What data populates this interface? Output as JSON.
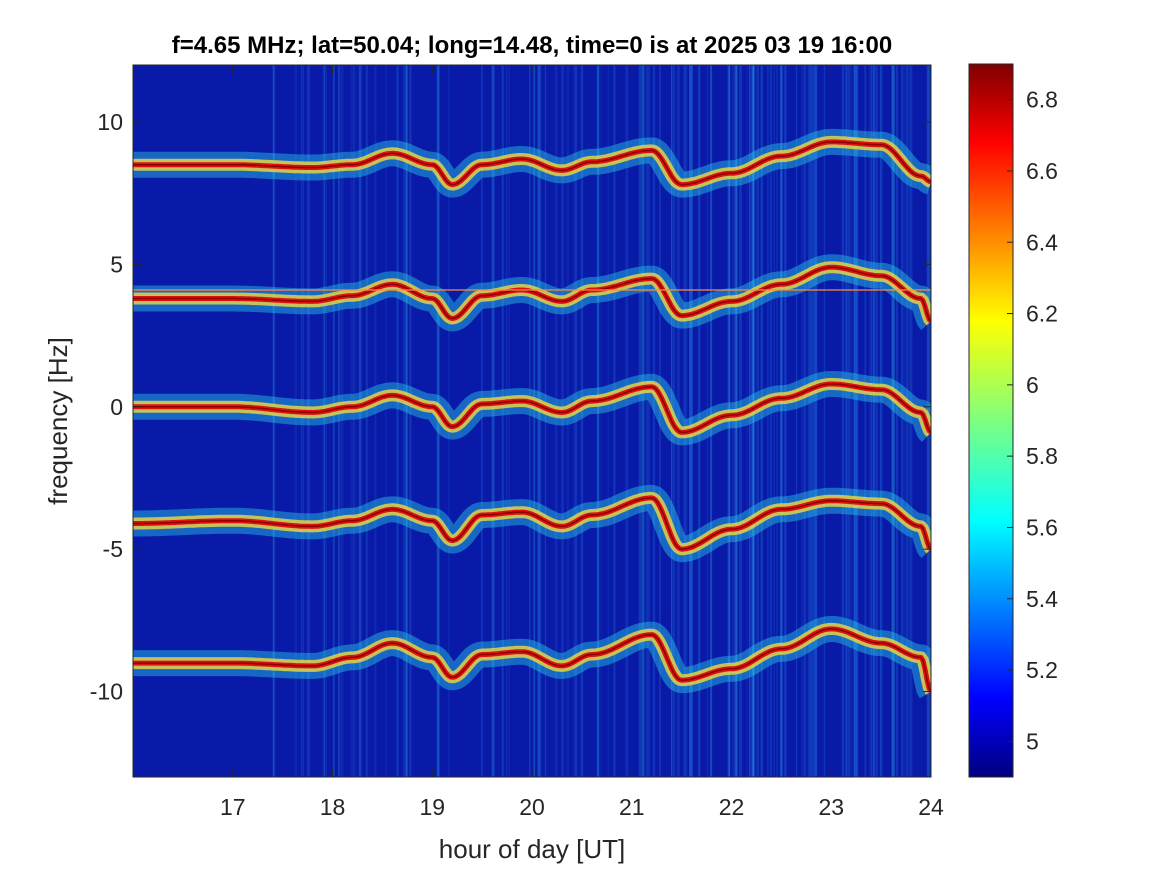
{
  "chart_data": {
    "type": "heatmap",
    "title": "f=4.65 MHz;  lat=50.04; long=14.48, time=0 is at 2025 03 19 16:00",
    "xlabel": "hour of day [UT]",
    "ylabel": "frequency [Hz]",
    "xlim": [
      16,
      24
    ],
    "ylim": [
      -13,
      12
    ],
    "xticks": [
      17,
      18,
      19,
      20,
      21,
      22,
      23,
      24
    ],
    "xtick_labels": [
      "17",
      "18",
      "19",
      "20",
      "21",
      "22",
      "23",
      "24"
    ],
    "yticks": [
      10,
      5,
      0,
      -5,
      -10
    ],
    "ytick_labels": [
      "10",
      "5",
      "0",
      "-5",
      "-10"
    ],
    "colorbar": {
      "colormap": "jet",
      "range": [
        4.9,
        6.9
      ],
      "ticks": [
        6.8,
        6.6,
        6.4,
        6.2,
        6,
        5.8,
        5.6,
        5.4,
        5.2,
        5
      ],
      "tick_labels": [
        "6.8",
        "6.6",
        "6.4",
        "6.2",
        "6",
        "5.8",
        "5.6",
        "5.4",
        "5.2",
        "5"
      ]
    },
    "reference_line_y": 4.1,
    "traces": [
      {
        "offset": 8.3,
        "x": [
          16.0,
          17.0,
          17.8,
          18.2,
          18.6,
          19.0,
          19.2,
          19.5,
          19.9,
          20.3,
          20.6,
          21.2,
          21.5,
          22.0,
          22.5,
          23.0,
          23.5,
          23.9,
          24.0
        ],
        "y": [
          8.5,
          8.5,
          8.4,
          8.5,
          8.9,
          8.5,
          7.8,
          8.5,
          8.7,
          8.3,
          8.6,
          9.0,
          7.8,
          8.2,
          8.8,
          9.3,
          9.2,
          8.1,
          7.9
        ]
      },
      {
        "offset": 3.8,
        "x": [
          16.0,
          17.0,
          17.8,
          18.2,
          18.6,
          19.0,
          19.2,
          19.5,
          19.9,
          20.3,
          20.6,
          21.2,
          21.5,
          22.0,
          22.5,
          23.0,
          23.5,
          23.9,
          24.0
        ],
        "y": [
          3.8,
          3.8,
          3.7,
          3.9,
          4.3,
          3.8,
          3.1,
          3.9,
          4.1,
          3.7,
          4.1,
          4.5,
          3.2,
          3.7,
          4.3,
          4.9,
          4.6,
          3.8,
          3.0
        ]
      },
      {
        "offset": 0.0,
        "x": [
          16.0,
          17.0,
          17.8,
          18.2,
          18.6,
          19.0,
          19.2,
          19.5,
          19.9,
          20.3,
          20.6,
          21.2,
          21.5,
          22.0,
          22.5,
          23.0,
          23.5,
          23.9,
          24.0
        ],
        "y": [
          0.0,
          0.0,
          -0.2,
          0.0,
          0.4,
          0.0,
          -0.7,
          0.1,
          0.2,
          -0.2,
          0.2,
          0.7,
          -0.9,
          -0.3,
          0.3,
          0.8,
          0.6,
          -0.2,
          -0.9
        ]
      },
      {
        "offset": -4.1,
        "x": [
          16.0,
          17.0,
          17.8,
          18.2,
          18.6,
          19.0,
          19.2,
          19.5,
          19.9,
          20.3,
          20.6,
          21.2,
          21.5,
          22.0,
          22.5,
          23.0,
          23.5,
          23.9,
          24.0
        ],
        "y": [
          -4.1,
          -4.0,
          -4.2,
          -4.0,
          -3.6,
          -4.0,
          -4.7,
          -3.8,
          -3.7,
          -4.2,
          -3.8,
          -3.2,
          -5.0,
          -4.3,
          -3.6,
          -3.3,
          -3.4,
          -4.2,
          -5.0
        ]
      },
      {
        "offset": -9.0,
        "x": [
          16.0,
          17.0,
          17.8,
          18.2,
          18.6,
          19.0,
          19.2,
          19.5,
          19.9,
          20.3,
          20.6,
          21.2,
          21.5,
          22.0,
          22.5,
          23.0,
          23.5,
          23.9,
          24.0
        ],
        "y": [
          -9.0,
          -9.0,
          -9.1,
          -8.8,
          -8.3,
          -8.8,
          -9.5,
          -8.7,
          -8.6,
          -9.1,
          -8.7,
          -8.0,
          -9.6,
          -9.2,
          -8.5,
          -7.8,
          -8.3,
          -8.8,
          -10.0
        ]
      }
    ]
  }
}
